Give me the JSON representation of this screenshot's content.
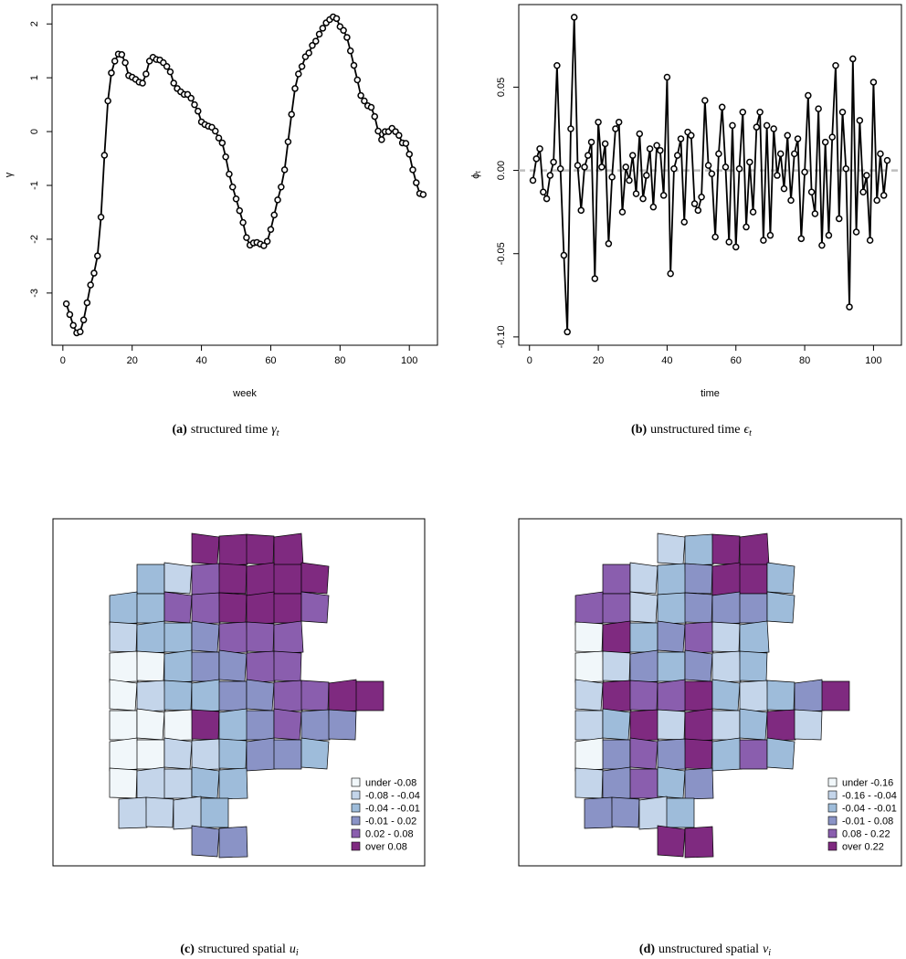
{
  "chart_data": [
    {
      "type": "line",
      "xlabel": "week",
      "ylabel": "γ",
      "caption": {
        "label": "(a)",
        "text": "structured time",
        "symbol": "γ",
        "sub": "t"
      },
      "x": [
        1,
        2,
        3,
        4,
        5,
        6,
        7,
        8,
        9,
        10,
        11,
        12,
        13,
        14,
        15,
        16,
        17,
        18,
        19,
        20,
        21,
        22,
        23,
        24,
        25,
        26,
        27,
        28,
        29,
        30,
        31,
        32,
        33,
        34,
        35,
        36,
        37,
        38,
        39,
        40,
        41,
        42,
        43,
        44,
        45,
        46,
        47,
        48,
        49,
        50,
        51,
        52,
        53,
        54,
        55,
        56,
        57,
        58,
        59,
        60,
        61,
        62,
        63,
        64,
        65,
        66,
        67,
        68,
        69,
        70,
        71,
        72,
        73,
        74,
        75,
        76,
        77,
        78,
        79,
        80,
        81,
        82,
        83,
        84,
        85,
        86,
        87,
        88,
        89,
        90,
        91,
        92,
        93,
        94,
        95,
        96,
        97,
        98,
        99,
        100,
        101,
        102,
        103,
        104
      ],
      "values": [
        -3.2,
        -3.4,
        -3.6,
        -3.74,
        -3.72,
        -3.5,
        -3.18,
        -2.85,
        -2.63,
        -2.31,
        -1.59,
        -0.44,
        0.57,
        1.09,
        1.31,
        1.44,
        1.43,
        1.28,
        1.04,
        1.01,
        0.97,
        0.92,
        0.9,
        1.07,
        1.31,
        1.38,
        1.34,
        1.33,
        1.28,
        1.21,
        1.11,
        0.9,
        0.8,
        0.74,
        0.69,
        0.69,
        0.62,
        0.5,
        0.38,
        0.18,
        0.13,
        0.1,
        0.08,
        0.01,
        -0.12,
        -0.21,
        -0.47,
        -0.79,
        -1.03,
        -1.25,
        -1.47,
        -1.69,
        -1.97,
        -2.11,
        -2.07,
        -2.06,
        -2.09,
        -2.12,
        -2.04,
        -1.82,
        -1.55,
        -1.27,
        -1.03,
        -0.71,
        -0.19,
        0.32,
        0.8,
        1.07,
        1.21,
        1.39,
        1.46,
        1.6,
        1.68,
        1.81,
        1.92,
        2.02,
        2.08,
        2.13,
        2.1,
        1.95,
        1.88,
        1.75,
        1.5,
        1.23,
        0.96,
        0.67,
        0.57,
        0.48,
        0.45,
        0.28,
        0.01,
        -0.15,
        0,
        0,
        0.06,
        0,
        -0.07,
        -0.21,
        -0.22,
        -0.42,
        -0.71,
        -0.95,
        -1.15,
        -1.17
      ],
      "color": "#000000",
      "xlim": [
        -3.12,
        108.12
      ],
      "xticks": [
        0,
        20,
        40,
        60,
        80,
        100
      ],
      "ylim": [
        -3.97,
        2.36
      ],
      "yticks": [
        -3,
        -2,
        -1,
        0,
        1,
        2
      ]
    },
    {
      "type": "line",
      "xlabel": "time",
      "ylabel": "ϕ",
      "ylabel_sub": "t",
      "caption": {
        "label": "(b)",
        "text": "unstructured time",
        "symbol": "ϵ",
        "sub": "t"
      },
      "x": [
        1,
        2,
        3,
        4,
        5,
        6,
        7,
        8,
        9,
        10,
        11,
        12,
        13,
        14,
        15,
        16,
        17,
        18,
        19,
        20,
        21,
        22,
        23,
        24,
        25,
        26,
        27,
        28,
        29,
        30,
        31,
        32,
        33,
        34,
        35,
        36,
        37,
        38,
        39,
        40,
        41,
        42,
        43,
        44,
        45,
        46,
        47,
        48,
        49,
        50,
        51,
        52,
        53,
        54,
        55,
        56,
        57,
        58,
        59,
        60,
        61,
        62,
        63,
        64,
        65,
        66,
        67,
        68,
        69,
        70,
        71,
        72,
        73,
        74,
        75,
        76,
        77,
        78,
        79,
        80,
        81,
        82,
        83,
        84,
        85,
        86,
        87,
        88,
        89,
        90,
        91,
        92,
        93,
        94,
        95,
        96,
        97,
        98,
        99,
        100,
        101,
        102,
        103,
        104
      ],
      "values": [
        -0.006,
        0.007,
        0.013,
        -0.013,
        -0.017,
        -0.003,
        0.005,
        0.063,
        0.001,
        -0.051,
        -0.097,
        0.025,
        0.092,
        0.003,
        -0.024,
        0.002,
        0.009,
        0.017,
        -0.065,
        0.029,
        0.002,
        0.016,
        -0.044,
        -0.004,
        0.025,
        0.029,
        -0.025,
        0.002,
        -0.006,
        0.009,
        -0.014,
        0.022,
        -0.017,
        -0.003,
        0.013,
        -0.022,
        0.015,
        0.012,
        -0.015,
        0.056,
        -0.062,
        0.001,
        0.009,
        0.019,
        -0.031,
        0.023,
        0.021,
        -0.02,
        -0.024,
        -0.016,
        0.042,
        0.003,
        -0.002,
        -0.04,
        0.01,
        0.038,
        0.002,
        -0.043,
        0.027,
        -0.046,
        0.001,
        0.035,
        -0.034,
        0.005,
        -0.025,
        0.026,
        0.035,
        -0.042,
        0.027,
        -0.039,
        0.025,
        -0.003,
        0.01,
        -0.011,
        0.021,
        -0.018,
        0.01,
        0.019,
        -0.041,
        -0.001,
        0.045,
        -0.013,
        -0.026,
        0.037,
        -0.045,
        0.017,
        -0.039,
        0.02,
        0.063,
        -0.029,
        0.035,
        0.001,
        -0.082,
        0.067,
        -0.037,
        0.03,
        -0.013,
        -0.003,
        -0.042,
        0.053,
        -0.018,
        0.01,
        -0.015,
        0.006
      ],
      "color": "#000000",
      "hline": 0,
      "hline_color": "#bebebe",
      "xlim": [
        -3.12,
        108.12
      ],
      "xticks": [
        0,
        20,
        40,
        60,
        80,
        100
      ],
      "ylim": [
        -0.105,
        0.0996
      ],
      "yticks": [
        {
          "value": -0.1,
          "label": "-0.10"
        },
        -0.05,
        {
          "value": 0,
          "label": "0.00"
        },
        0.05
      ]
    },
    {
      "type": "choropleth",
      "legend_position": "bottomright",
      "caption": {
        "label": "(c)",
        "text": "structured spatial",
        "symbol": "u",
        "sub": "i"
      },
      "legend": [
        {
          "name": "under -0.08",
          "color": "#f1f7fa"
        },
        {
          "name": "-0.08 - -0.04",
          "color": "#c4d5ea"
        },
        {
          "name": "-0.04 - -0.01",
          "color": "#9ebcda"
        },
        {
          "name": "-0.01 - 0.02",
          "color": "#8a93c6"
        },
        {
          "name": "0.02 - 0.08",
          "color": "#8a5eae"
        },
        {
          "name": "over 0.08",
          "color": "#7f2a80"
        }
      ],
      "regions": [
        [
          5,
          5,
          5,
          5
        ],
        [
          2,
          1,
          4,
          5,
          5,
          5,
          5
        ],
        [
          2,
          2,
          4,
          4,
          5,
          5,
          5,
          4
        ],
        [
          1,
          2,
          2,
          3,
          4,
          4,
          4
        ],
        [
          0,
          0,
          2,
          3,
          3,
          4,
          4
        ],
        [
          0,
          1,
          2,
          2,
          3,
          3,
          4,
          4,
          5,
          5
        ],
        [
          0,
          0,
          0,
          5,
          2,
          3,
          4,
          3,
          3
        ],
        [
          0,
          0,
          1,
          1,
          2,
          3,
          3,
          2
        ],
        [
          0,
          1,
          1,
          2,
          2
        ],
        [
          1,
          1,
          1,
          2
        ],
        [
          3,
          3
        ]
      ]
    },
    {
      "type": "choropleth",
      "legend_position": "bottomright",
      "caption": {
        "label": "(d)",
        "text": "unstructured spatial",
        "symbol": "v",
        "sub": "i"
      },
      "legend": [
        {
          "name": "under -0.16",
          "color": "#f1f7fa"
        },
        {
          "name": "-0.16 - -0.04",
          "color": "#c4d5ea"
        },
        {
          "name": "-0.04 - -0.01",
          "color": "#9ebcda"
        },
        {
          "name": "-0.01 - 0.08",
          "color": "#8a93c6"
        },
        {
          "name": "0.08 - 0.22",
          "color": "#8a5eae"
        },
        {
          "name": "over 0.22",
          "color": "#7f2a80"
        }
      ],
      "regions": [
        [
          1,
          2,
          5,
          5
        ],
        [
          4,
          1,
          2,
          3,
          5,
          5,
          2
        ],
        [
          4,
          4,
          1,
          2,
          3,
          3,
          3,
          2
        ],
        [
          0,
          5,
          2,
          3,
          4,
          1,
          2
        ],
        [
          0,
          1,
          3,
          2,
          3,
          1,
          2
        ],
        [
          1,
          5,
          4,
          4,
          5,
          2,
          1,
          2,
          3,
          5
        ],
        [
          1,
          2,
          5,
          1,
          5,
          1,
          2,
          5,
          1
        ],
        [
          0,
          3,
          4,
          3,
          5,
          2,
          4,
          2
        ],
        [
          1,
          3,
          4,
          2,
          3
        ],
        [
          3,
          3,
          1,
          2
        ],
        [
          5,
          5
        ]
      ]
    }
  ]
}
